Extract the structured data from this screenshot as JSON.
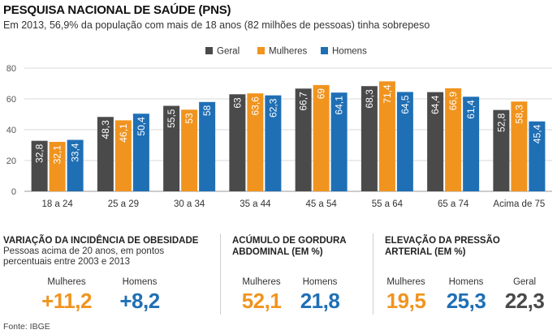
{
  "header": {
    "title": "PESQUISA NACIONAL DE SAÚDE (PNS)",
    "subtitle": "Em 2013, 56,9% da população com mais de 18 anos (82 milhões de pessoas) tinha sobrepeso"
  },
  "colors": {
    "geral": "#4a4a4a",
    "mulheres": "#f0941f",
    "homens": "#1f6fb5"
  },
  "chart_data": {
    "type": "bar",
    "categories": [
      "18 a 24",
      "25 a 29",
      "30 a 34",
      "35 a 44",
      "45 a 54",
      "55 a 64",
      "65 a 74",
      "Acima de 75"
    ],
    "series": [
      {
        "name": "Geral",
        "color": "#4a4a4a",
        "values": [
          32.8,
          48.3,
          55.5,
          63,
          66.7,
          68.3,
          64.4,
          52.8
        ],
        "labels": [
          "32,8",
          "48,3",
          "55,5",
          "63",
          "66,7",
          "68,3",
          "64,4",
          "52,8"
        ]
      },
      {
        "name": "Mulheres",
        "color": "#f0941f",
        "values": [
          32.1,
          46.1,
          53,
          63.6,
          69,
          71.4,
          66.9,
          58.3
        ],
        "labels": [
          "32,1",
          "46,1",
          "53",
          "63,6",
          "69",
          "71,4",
          "66,9",
          "58,3"
        ]
      },
      {
        "name": "Homens",
        "color": "#1f6fb5",
        "values": [
          33.4,
          50.4,
          58,
          62.3,
          64.1,
          64.5,
          61.4,
          45.4
        ],
        "labels": [
          "33,4",
          "50,4",
          "58",
          "62,3",
          "64,1",
          "64,5",
          "61,4",
          "45,4"
        ]
      }
    ],
    "yticks": [
      0,
      20,
      40,
      60,
      80
    ],
    "ylim": [
      0,
      80
    ],
    "grid": true,
    "legend_position": "top-center"
  },
  "obesity": {
    "title": "VARIAÇÃO DA INCIDÊNCIA DE OBESIDADE",
    "desc_line1": "Pessoas acima de 20 anos, em pontos",
    "desc_line2": "percentuais entre 2003 e 2013",
    "women_label": "Mulheres",
    "women_value": "+11,2",
    "men_label": "Homens",
    "men_value": "+8,2"
  },
  "abdominal": {
    "title_line1": "ACÚMULO DE GORDURA",
    "title_line2": "ABDOMINAL (EM %)",
    "women_label": "Mulheres",
    "women_value": "52,1",
    "men_label": "Homens",
    "men_value": "21,8"
  },
  "pressure": {
    "title_line1": "ELEVAÇÃO DA PRESSÃO",
    "title_line2": "ARTERIAL (EM %)",
    "women_label": "Mulheres",
    "women_value": "19,5",
    "men_label": "Homens",
    "men_value": "25,3",
    "general_label": "Geral",
    "general_value": "22,3"
  },
  "source": "Fonte: IBGE"
}
